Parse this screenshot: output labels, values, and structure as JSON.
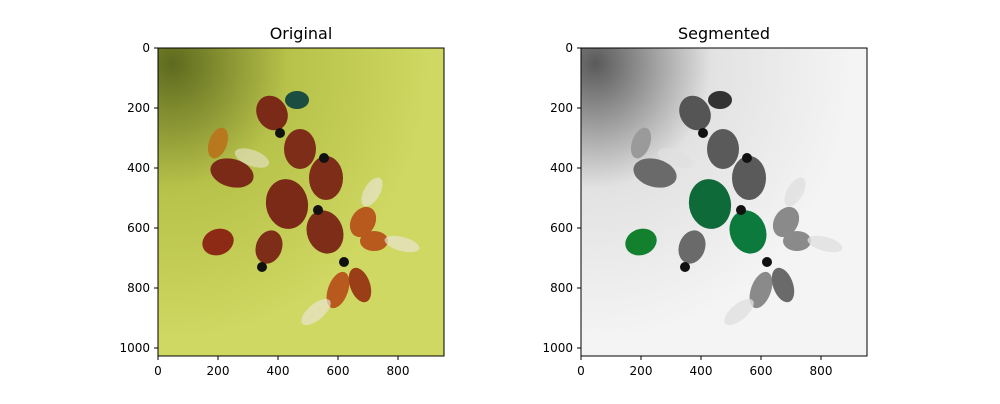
{
  "panels": [
    {
      "title": "Original",
      "x_ticks": [
        "0",
        "200",
        "400",
        "600",
        "800"
      ],
      "y_ticks": [
        "0",
        "200",
        "400",
        "600",
        "800",
        "1000"
      ]
    },
    {
      "title": "Segmented",
      "x_ticks": [
        "0",
        "200",
        "400",
        "600",
        "800"
      ],
      "y_ticks": [
        "0",
        "200",
        "400",
        "600",
        "800",
        "1000"
      ]
    }
  ],
  "colors": {
    "background_original": "#c8d35a",
    "background_original_shadow": "#6f7a2a",
    "ladybug_red": "#8a2a14",
    "ladybug_orange": "#c86a1c",
    "background_segmented": "#f0f0f0",
    "background_segmented_shadow": "#6e6e6e",
    "ladybug_gray": "#777777",
    "ladybug_green": "#0f7a3a"
  }
}
